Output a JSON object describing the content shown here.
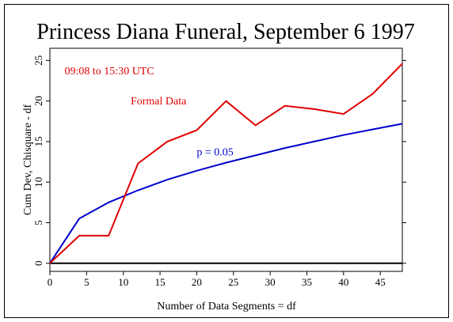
{
  "chart_data": {
    "type": "line",
    "title": "Princess Diana Funeral, September 6 1997",
    "xlabel": "Number of Data Segments = df",
    "ylabel": "Cum Dev, Chisquare - df",
    "xlim": [
      0,
      48
    ],
    "ylim": [
      -1,
      26.5
    ],
    "xticks": [
      0,
      5,
      10,
      15,
      20,
      25,
      30,
      35,
      40,
      45
    ],
    "yticks": [
      0,
      5,
      10,
      15,
      20,
      25
    ],
    "grid": false,
    "annotations": [
      {
        "text": "09:08 to 15:30 UTC",
        "x": 2,
        "y": 23.3,
        "color": "#e00000"
      },
      {
        "text": "Formal Data",
        "x": 11,
        "y": 19.6,
        "color": "#e00000"
      },
      {
        "text": "p = 0.05",
        "x": 20,
        "y": 13.3,
        "color": "#0000cc"
      }
    ],
    "series": [
      {
        "name": "Formal Data",
        "color": "#e00000",
        "x": [
          0,
          4,
          8,
          12,
          16,
          20,
          24,
          28,
          32,
          36,
          40,
          44,
          48
        ],
        "y": [
          0,
          3.4,
          3.4,
          12.3,
          15.0,
          16.4,
          20.0,
          17.0,
          19.4,
          19.0,
          18.4,
          20.9,
          24.6
        ]
      },
      {
        "name": "p = 0.05",
        "color": "#0000cc",
        "x": [
          0,
          4,
          8,
          12,
          16,
          20,
          24,
          28,
          32,
          36,
          40,
          44,
          48
        ],
        "y": [
          0,
          5.5,
          7.5,
          9.0,
          10.3,
          11.4,
          12.4,
          13.3,
          14.2,
          15.0,
          15.8,
          16.5,
          17.2
        ]
      },
      {
        "name": "",
        "color": "#000000",
        "x": [
          0,
          48
        ],
        "y": [
          0,
          0
        ]
      }
    ]
  }
}
